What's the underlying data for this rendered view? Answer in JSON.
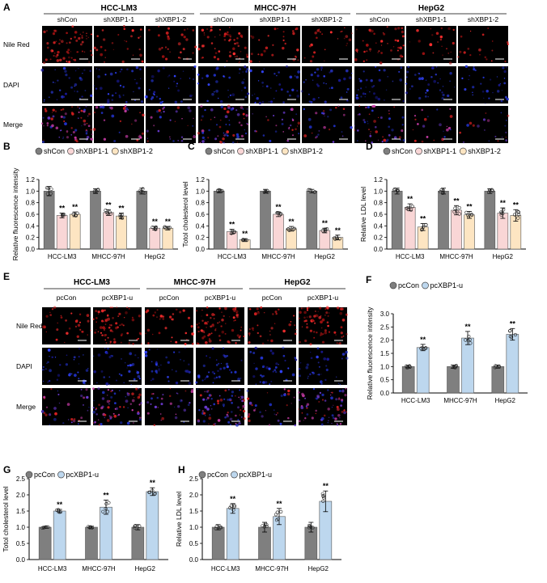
{
  "panel_a": {
    "letter": "A",
    "cell_lines": [
      "HCC-LM3",
      "MHCC-97H",
      "HepG2"
    ],
    "conditions": [
      "shCon",
      "shXBP1-1",
      "shXBP1-2"
    ],
    "rows": [
      "Nile Red",
      "DAPI",
      "Merge"
    ]
  },
  "panel_e": {
    "letter": "E",
    "cell_lines": [
      "HCC-LM3",
      "MHCC-97H",
      "HepG2"
    ],
    "conditions": [
      "pcCon",
      "pcXBP1-u"
    ],
    "rows": [
      "Nile Red",
      "DAPI",
      "Merge"
    ]
  },
  "colors": {
    "gray": "#7f7f7f",
    "pink": "#f9d6d6",
    "orange": "#fde5c2",
    "blue": "#bdd7ee",
    "nile_red": "#d42020",
    "dapi": "#2233cc",
    "merge": "#c83ca6"
  },
  "chart_data": [
    {
      "id": "B",
      "letter": "B",
      "type": "bar",
      "categories": [
        "HCC-LM3",
        "MHCC-97H",
        "HepG2"
      ],
      "ylabel": "Relative fluorescence intensity",
      "ylim": [
        0,
        1.2
      ],
      "yticks": [
        0.0,
        0.2,
        0.4,
        0.6,
        0.8,
        1.0,
        1.2
      ],
      "series": [
        {
          "name": "shCon",
          "color": "#7f7f7f",
          "values": [
            1.0,
            1.0,
            1.0
          ],
          "err": [
            0.08,
            0.04,
            0.05
          ]
        },
        {
          "name": "shXBP1-1",
          "color": "#f9d6d6",
          "values": [
            0.58,
            0.63,
            0.36
          ],
          "err": [
            0.04,
            0.05,
            0.03
          ]
        },
        {
          "name": "shXBP1-2",
          "color": "#fde5c2",
          "values": [
            0.6,
            0.57,
            0.36
          ],
          "err": [
            0.04,
            0.05,
            0.03
          ]
        }
      ],
      "annotations": [
        "",
        "**",
        "**"
      ]
    },
    {
      "id": "C",
      "letter": "C",
      "type": "bar",
      "categories": [
        "HCC-LM3",
        "MHCC-97H",
        "HepG2"
      ],
      "ylabel": "Totol cholesterol level",
      "ylim": [
        0,
        1.2
      ],
      "yticks": [
        0.0,
        0.2,
        0.4,
        0.6,
        0.8,
        1.0,
        1.2
      ],
      "series": [
        {
          "name": "shCon",
          "color": "#7f7f7f",
          "values": [
            1.0,
            1.0,
            1.0
          ],
          "err": [
            0.03,
            0.03,
            0.03
          ]
        },
        {
          "name": "shXBP1-1",
          "color": "#f9d6d6",
          "values": [
            0.3,
            0.6,
            0.32
          ],
          "err": [
            0.04,
            0.04,
            0.04
          ]
        },
        {
          "name": "shXBP1-2",
          "color": "#fde5c2",
          "values": [
            0.16,
            0.35,
            0.2
          ],
          "err": [
            0.02,
            0.04,
            0.04
          ]
        }
      ],
      "annotations": [
        "",
        "**",
        "**"
      ]
    },
    {
      "id": "D",
      "letter": "D",
      "type": "bar",
      "categories": [
        "HCC-LM3",
        "MHCC-97H",
        "HepG2"
      ],
      "ylabel": "Relative LDL level",
      "ylim": [
        0,
        1.2
      ],
      "yticks": [
        0.0,
        0.2,
        0.4,
        0.6,
        0.8,
        1.0,
        1.2
      ],
      "series": [
        {
          "name": "shCon",
          "color": "#7f7f7f",
          "values": [
            1.0,
            1.0,
            1.0
          ],
          "err": [
            0.05,
            0.05,
            0.04
          ]
        },
        {
          "name": "shXBP1-1",
          "color": "#f9d6d6",
          "values": [
            0.72,
            0.67,
            0.62
          ],
          "err": [
            0.06,
            0.08,
            0.09
          ]
        },
        {
          "name": "shXBP1-2",
          "color": "#fde5c2",
          "values": [
            0.38,
            0.59,
            0.58
          ],
          "err": [
            0.06,
            0.06,
            0.1
          ]
        }
      ],
      "annotations": [
        "",
        "**",
        "**"
      ]
    },
    {
      "id": "F",
      "letter": "F",
      "type": "bar",
      "categories": [
        "HCC-LM3",
        "MHCC-97H",
        "HepG2"
      ],
      "ylabel": "Relative fluorescence intensity",
      "ylim": [
        0,
        3.0
      ],
      "yticks": [
        0.0,
        0.5,
        1.0,
        1.5,
        2.0,
        2.5,
        3.0
      ],
      "series": [
        {
          "name": "pcCon",
          "color": "#7f7f7f",
          "values": [
            1.0,
            1.0,
            1.0
          ],
          "err": [
            0.05,
            0.06,
            0.06
          ]
        },
        {
          "name": "pcXBP1-u",
          "color": "#bdd7ee",
          "values": [
            1.72,
            2.08,
            2.22
          ],
          "err": [
            0.12,
            0.25,
            0.22
          ]
        }
      ],
      "annotations": [
        "",
        "**"
      ]
    },
    {
      "id": "G",
      "letter": "G",
      "type": "bar",
      "categories": [
        "HCC-LM3",
        "MHCC-97H",
        "HepG2"
      ],
      "ylabel": "Totol cholesterol level",
      "ylim": [
        0,
        2.5
      ],
      "yticks": [
        0.0,
        0.5,
        1.0,
        1.5,
        2.0,
        2.5
      ],
      "series": [
        {
          "name": "pcCon",
          "color": "#7f7f7f",
          "values": [
            1.0,
            1.0,
            1.0
          ],
          "err": [
            0.03,
            0.03,
            0.08
          ]
        },
        {
          "name": "pcXBP1-u",
          "color": "#bdd7ee",
          "values": [
            1.5,
            1.62,
            2.1
          ],
          "err": [
            0.05,
            0.22,
            0.12
          ]
        }
      ],
      "annotations": [
        "",
        "**"
      ]
    },
    {
      "id": "H",
      "letter": "H",
      "type": "bar",
      "categories": [
        "HCC-LM3",
        "MHCC-97H",
        "HepG2"
      ],
      "ylabel": "Relative LDL level",
      "ylim": [
        0,
        2.5
      ],
      "yticks": [
        0.0,
        0.5,
        1.0,
        1.5,
        2.0,
        2.5
      ],
      "series": [
        {
          "name": "pcCon",
          "color": "#7f7f7f",
          "values": [
            1.0,
            1.0,
            1.0
          ],
          "err": [
            0.08,
            0.15,
            0.15
          ]
        },
        {
          "name": "pcXBP1-u",
          "color": "#bdd7ee",
          "values": [
            1.58,
            1.33,
            1.8
          ],
          "err": [
            0.15,
            0.25,
            0.32
          ]
        }
      ],
      "annotations": [
        "",
        "**"
      ]
    }
  ]
}
